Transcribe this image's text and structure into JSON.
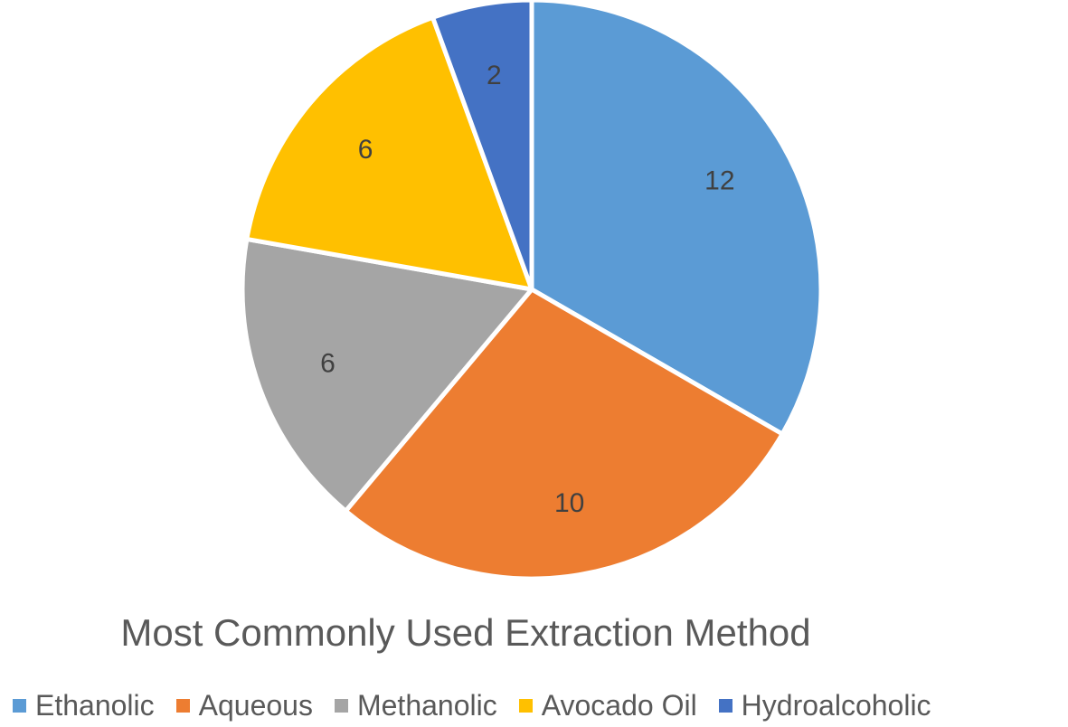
{
  "chart_data": {
    "type": "pie",
    "title": "Most Commonly Used Extraction Method",
    "legend_position": "bottom",
    "slices": [
      {
        "label": "Ethanolic",
        "value": 12,
        "color": "#5B9BD5"
      },
      {
        "label": "Aqueous",
        "value": 10,
        "color": "#ED7D31"
      },
      {
        "label": "Methanolic",
        "value": 6,
        "color": "#A5A5A5"
      },
      {
        "label": "Avocado Oil",
        "value": 6,
        "color": "#FFC000"
      },
      {
        "label": "Hydroalcoholic",
        "value": 2,
        "color": "#4472C4"
      }
    ]
  }
}
